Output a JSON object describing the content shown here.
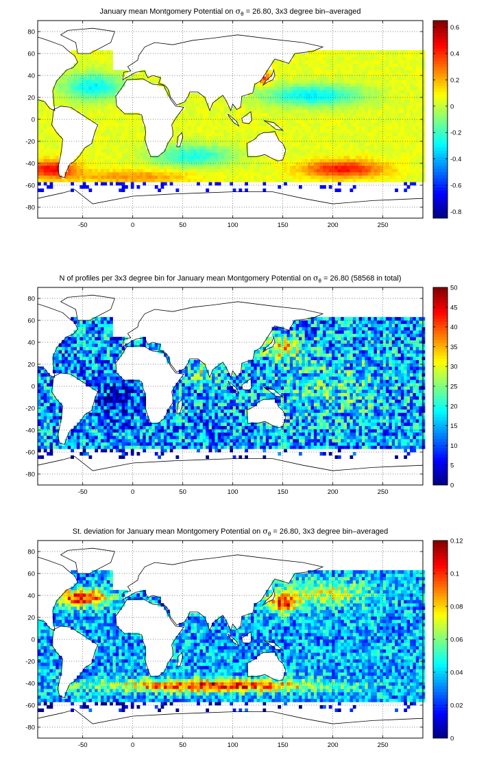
{
  "figure": {
    "panels": [
      {
        "title_pre": "January mean Montgomery Potential on ",
        "title_sym": "σ",
        "title_sub": "θ",
        "title_post": " = 26.80, 3x3 degree bin–averaged",
        "colorbar": {
          "min": -0.85,
          "max": 0.65,
          "ticks": [
            "-0.8",
            "-0.6",
            "-0.4",
            "-0.2",
            "0",
            "0.2",
            "0.4",
            "0.6"
          ],
          "tick_values": [
            -0.8,
            -0.6,
            -0.4,
            -0.2,
            0,
            0.2,
            0.4,
            0.6
          ]
        }
      },
      {
        "title_pre": "N of profiles per 3x3 degree bin for January mean Montgomery Potential on ",
        "title_sym": "σ",
        "title_sub": "θ",
        "title_post": " = 26.80 (58568 in total)",
        "colorbar": {
          "min": 0,
          "max": 50,
          "ticks": [
            "0",
            "5",
            "10",
            "15",
            "20",
            "25",
            "30",
            "35",
            "40",
            "45",
            "50"
          ],
          "tick_values": [
            0,
            5,
            10,
            15,
            20,
            25,
            30,
            35,
            40,
            45,
            50
          ]
        }
      },
      {
        "title_pre": "St. deviation for January mean Montgomery Potential on ",
        "title_sym": "σ",
        "title_sub": "θ",
        "title_post": " = 26.80, 3x3 degree bin–averaged",
        "colorbar": {
          "min": 0,
          "max": 0.12,
          "ticks": [
            "0",
            "0.02",
            "0.04",
            "0.06",
            "0.08",
            "0.1",
            "0.12"
          ],
          "tick_values": [
            0,
            0.02,
            0.04,
            0.06,
            0.08,
            0.1,
            0.12
          ]
        }
      }
    ],
    "x_axis": {
      "range": [
        -95,
        290
      ],
      "ticks": [
        "-50",
        "0",
        "50",
        "100",
        "150",
        "200",
        "250"
      ],
      "tick_values": [
        -50,
        0,
        50,
        100,
        150,
        200,
        250
      ]
    },
    "y_axis": {
      "range": [
        -90,
        90
      ],
      "ticks": [
        "80",
        "60",
        "40",
        "20",
        "0",
        "-20",
        "-40",
        "-60",
        "-80"
      ],
      "tick_values": [
        80,
        60,
        40,
        20,
        0,
        -20,
        -40,
        -60,
        -80
      ]
    },
    "grid": "dotted",
    "colormap": "jet"
  }
}
